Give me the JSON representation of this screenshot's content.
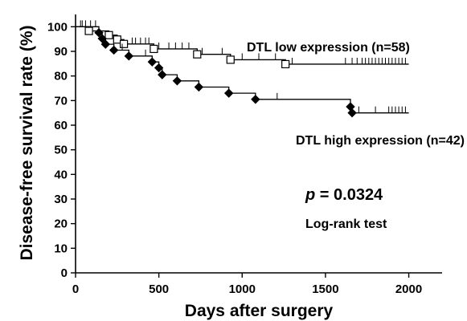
{
  "chart_data": {
    "type": "line",
    "style": "step",
    "title": "",
    "xlabel": "Days after surgery",
    "ylabel": "Disease-free survival rate (%)",
    "xlim": [
      0,
      2200
    ],
    "ylim": [
      0,
      105
    ],
    "x_ticks": [
      0,
      500,
      1000,
      1500,
      2000
    ],
    "y_ticks": [
      0,
      10,
      20,
      30,
      40,
      50,
      60,
      70,
      80,
      90,
      100
    ],
    "grid": false,
    "series": [
      {
        "name": "DTL low expression (n=58)",
        "marker": "open-square",
        "color": "#000000",
        "events": [
          {
            "x": 80,
            "y": 98.3
          },
          {
            "x": 200,
            "y": 96.6
          },
          {
            "x": 250,
            "y": 94.8
          },
          {
            "x": 290,
            "y": 93.0
          },
          {
            "x": 470,
            "y": 91.0
          },
          {
            "x": 730,
            "y": 88.8
          },
          {
            "x": 930,
            "y": 86.6
          },
          {
            "x": 1260,
            "y": 84.8
          }
        ],
        "censored": [
          30,
          340,
          360,
          390,
          420,
          440,
          500,
          560,
          600,
          640,
          680,
          760,
          880,
          1000,
          1100,
          1200,
          1300,
          1620,
          1660,
          1690,
          1720,
          1740,
          1760,
          1780,
          1800,
          1820,
          1840,
          1860,
          1880,
          1900,
          1920,
          1940,
          1960,
          1980
        ],
        "end_x": 2000
      },
      {
        "name": "DTL high expression (n=42)",
        "marker": "filled-diamond",
        "color": "#000000",
        "events": [
          {
            "x": 140,
            "y": 97.6
          },
          {
            "x": 160,
            "y": 95.2
          },
          {
            "x": 180,
            "y": 92.9
          },
          {
            "x": 230,
            "y": 90.5
          },
          {
            "x": 320,
            "y": 88.1
          },
          {
            "x": 460,
            "y": 85.7
          },
          {
            "x": 500,
            "y": 83.3
          },
          {
            "x": 520,
            "y": 80.5
          },
          {
            "x": 610,
            "y": 78.0
          },
          {
            "x": 740,
            "y": 75.5
          },
          {
            "x": 920,
            "y": 73.0
          },
          {
            "x": 1080,
            "y": 70.5
          },
          {
            "x": 1650,
            "y": 67.5
          },
          {
            "x": 1660,
            "y": 65.0
          }
        ],
        "censored": [
          40,
          60,
          90,
          120,
          280,
          420,
          1210,
          1700,
          1800,
          1880,
          1900,
          1920,
          1940,
          1960,
          1980
        ],
        "end_x": 2000
      }
    ],
    "annotations": {
      "series_low_label": "DTL low expression (n=58)",
      "series_high_label": "DTL high expression (n=42)",
      "p_symbol": "p",
      "p_value": " = 0.0324",
      "test_label": "Log-rank test"
    }
  }
}
